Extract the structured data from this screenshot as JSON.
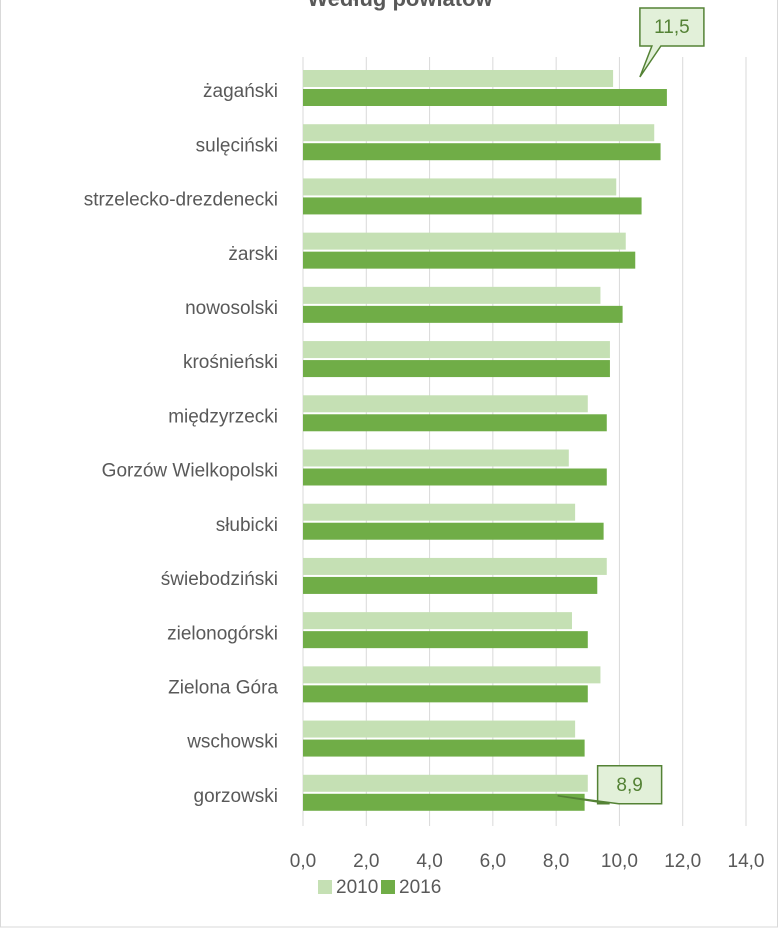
{
  "chart_data": {
    "type": "hbar",
    "title": "Według powiatów",
    "categories": [
      "żagański",
      "sulęciński",
      "strzelecko-drezdenecki",
      "żarski",
      "nowosolski",
      "krośnieński",
      "międzyrzecki",
      "Gorzów Wielkopolski",
      "słubicki",
      "świebodziński",
      "zielonogórski",
      "Zielona Góra",
      "wschowski",
      "gorzowski"
    ],
    "series": [
      {
        "name": "2010",
        "color": "#c5e0b4",
        "values": [
          9.8,
          11.1,
          9.9,
          10.2,
          9.4,
          9.7,
          9.0,
          8.4,
          8.6,
          9.6,
          8.5,
          9.4,
          8.6,
          9.0
        ]
      },
      {
        "name": "2016",
        "color": "#70ad47",
        "values": [
          11.5,
          11.3,
          10.7,
          10.5,
          10.1,
          9.7,
          9.6,
          9.6,
          9.5,
          9.3,
          9.0,
          9.0,
          8.9,
          8.9
        ],
        "value_labels": [
          "11,5",
          null,
          null,
          null,
          null,
          null,
          null,
          null,
          null,
          null,
          null,
          null,
          null,
          "8,9"
        ]
      }
    ],
    "xlim": [
      0,
      14
    ],
    "xticks": [
      {
        "value": 0,
        "label": "0,0"
      },
      {
        "value": 2,
        "label": "2,0"
      },
      {
        "value": 4,
        "label": "4,0"
      },
      {
        "value": 6,
        "label": "6,0"
      },
      {
        "value": 8,
        "label": "8,0"
      },
      {
        "value": 10,
        "label": "10,0"
      },
      {
        "value": 12,
        "label": "12,0"
      },
      {
        "value": 14,
        "label": "14,0"
      }
    ],
    "grid": true,
    "legend": "bottom"
  }
}
